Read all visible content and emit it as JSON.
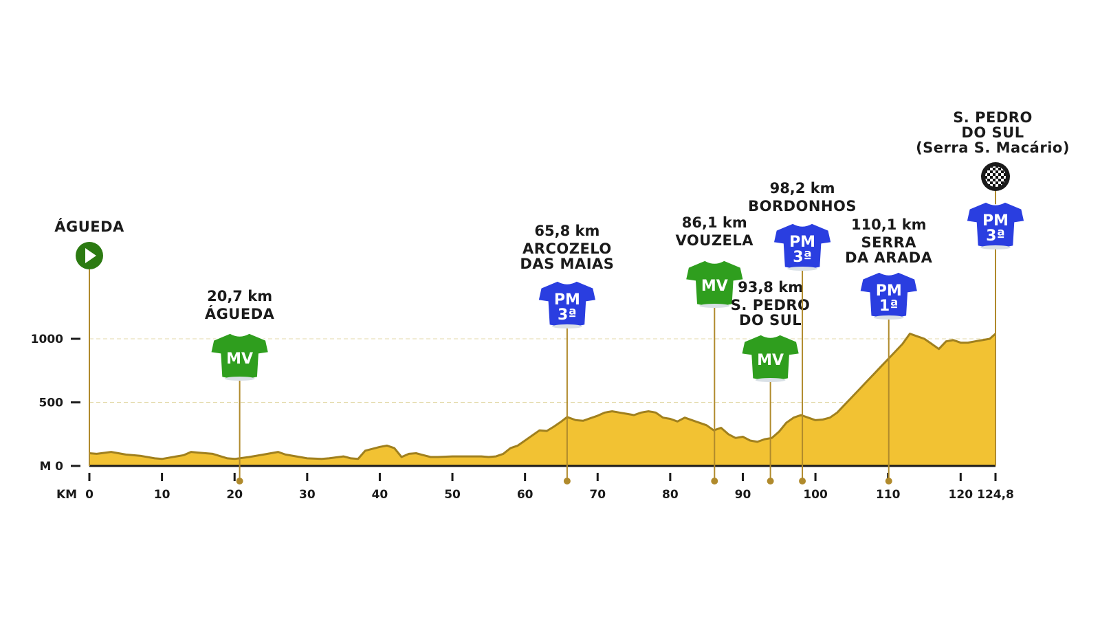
{
  "chart_data": {
    "type": "area",
    "xlabel": "KM",
    "ylabel": "M",
    "xlim": [
      0,
      124.8
    ],
    "ylim": [
      0,
      1000
    ],
    "x_ticks": [
      "0",
      "10",
      "20",
      "30",
      "40",
      "50",
      "60",
      "70",
      "80",
      "90",
      "100",
      "110",
      "120",
      "124,8"
    ],
    "x_tick_values": [
      0,
      10,
      20,
      30,
      40,
      50,
      60,
      70,
      80,
      90,
      100,
      110,
      120,
      124.8
    ],
    "y_ticks": [
      "0",
      "500",
      "1000"
    ],
    "y_tick_values": [
      0,
      500,
      1000
    ],
    "grid": "horizontal dashed at 500 and 1000",
    "fill_color": "#f2c233",
    "line_color": "#a0801e",
    "profile": {
      "x": [
        0,
        1,
        3,
        5,
        7,
        9,
        10,
        12,
        13,
        14,
        15,
        17,
        19,
        20,
        22,
        24,
        26,
        27,
        30,
        32,
        33,
        35,
        36,
        37,
        38,
        40,
        41,
        42,
        43,
        44,
        45,
        46,
        47,
        48,
        50,
        54,
        55,
        56,
        57,
        58,
        59,
        60,
        61,
        62,
        63,
        64,
        65,
        65.8,
        67,
        68,
        69,
        70,
        71,
        72,
        73,
        74,
        75,
        76,
        77,
        78,
        79,
        80,
        81,
        82,
        83,
        84,
        85,
        86,
        87,
        88,
        89,
        90,
        91,
        92,
        93,
        94,
        95,
        96,
        97,
        98,
        99,
        100,
        101,
        102,
        103,
        104,
        105,
        106,
        107,
        108,
        109,
        110,
        111,
        112,
        113,
        114,
        115,
        116,
        117,
        118,
        119,
        120,
        121,
        122,
        123,
        124,
        124.8
      ],
      "y": [
        100,
        95,
        110,
        90,
        80,
        60,
        55,
        75,
        85,
        110,
        105,
        95,
        60,
        55,
        70,
        90,
        110,
        90,
        60,
        55,
        60,
        75,
        60,
        55,
        120,
        150,
        160,
        140,
        70,
        95,
        100,
        85,
        70,
        70,
        75,
        75,
        70,
        75,
        95,
        140,
        160,
        200,
        240,
        280,
        275,
        310,
        350,
        385,
        360,
        355,
        375,
        395,
        420,
        430,
        420,
        410,
        400,
        420,
        430,
        420,
        380,
        370,
        350,
        380,
        360,
        340,
        320,
        280,
        300,
        250,
        220,
        230,
        200,
        190,
        210,
        220,
        270,
        340,
        380,
        400,
        380,
        360,
        365,
        380,
        420,
        480,
        540,
        600,
        660,
        720,
        780,
        840,
        900,
        960,
        1040,
        1020,
        1000,
        960,
        920,
        980,
        990,
        970,
        970,
        980,
        990,
        1000,
        1040
      ]
    },
    "start": {
      "name": "ÁGUEDA"
    },
    "finish": {
      "name_lines": [
        "S. PEDRO",
        "DO SUL",
        "(Serra S. Macário)"
      ]
    },
    "points": [
      {
        "km_label": "20,7 km",
        "name_lines": [
          "ÁGUEDA"
        ],
        "x": 20.7,
        "type": "MV",
        "grade": ""
      },
      {
        "km_label": "65,8 km",
        "name_lines": [
          "ARCOZELO",
          "DAS MAIAS"
        ],
        "x": 65.8,
        "type": "PM",
        "grade": "3ª"
      },
      {
        "km_label": "86,1 km",
        "name_lines": [
          "VOUZELA"
        ],
        "x": 86.1,
        "type": "MV",
        "grade": ""
      },
      {
        "km_label": "93,8 km",
        "name_lines": [
          "S. PEDRO",
          "DO SUL"
        ],
        "x": 93.8,
        "type": "MV",
        "grade": ""
      },
      {
        "km_label": "98,2 km",
        "name_lines": [
          "BORDONHOS"
        ],
        "x": 98.2,
        "type": "PM",
        "grade": "3ª"
      },
      {
        "km_label": "110,1 km",
        "name_lines": [
          "SERRA",
          "DA ARADA"
        ],
        "x": 110.1,
        "type": "PM",
        "grade": "1ª"
      },
      {
        "km_label": "",
        "name_lines": [],
        "x": 124.8,
        "type": "PM",
        "grade": "3ª"
      }
    ],
    "colors": {
      "mv": "#2f9e1e",
      "pm": "#2a3ee0",
      "start": "#2c7a12",
      "pole": "#b08a2c",
      "axis": "#1a1a1a"
    }
  }
}
